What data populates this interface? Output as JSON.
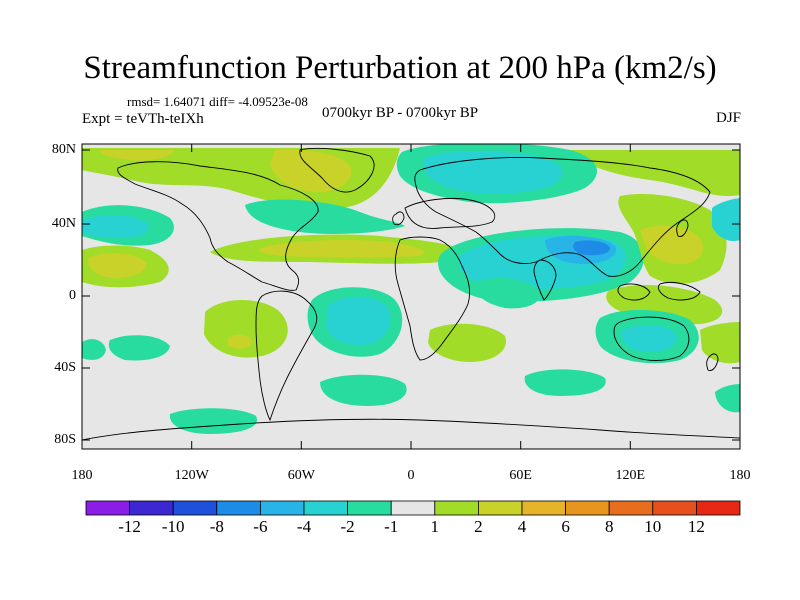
{
  "title": "Streamfunction Perturbation at 200 hPa (km2/s)",
  "stats": "rmsd= 1.64071 diff= -4.09523e-08",
  "experiment": "Expt = teVTh-teIXh",
  "period": "0700kyr BP - 0700kyr BP",
  "season": "DJF",
  "lat_ticks": [
    "80N",
    "40N",
    "0",
    "40S",
    "80S"
  ],
  "lon_ticks": [
    "180",
    "120W",
    "60W",
    "0",
    "60E",
    "120E",
    "180"
  ],
  "colorbar": {
    "labels": [
      "-12",
      "-10",
      "-8",
      "-6",
      "-4",
      "-2",
      "-1",
      "1",
      "2",
      "4",
      "6",
      "8",
      "10",
      "12"
    ],
    "colors": [
      "#8a1ee6",
      "#3c28d2",
      "#1e50dc",
      "#1e8ce6",
      "#28b4e6",
      "#28d2d2",
      "#28dca0",
      "#e6e6e6",
      "#a0dc28",
      "#c8d228",
      "#e6b428",
      "#e6961e",
      "#e66e1e",
      "#e6501e",
      "#e62814"
    ]
  },
  "map": {
    "background": "#e6e6e6",
    "projection": "cylindrical-equidistant",
    "lon_range": [
      -180,
      180
    ],
    "lat_range": [
      -90,
      90
    ]
  }
}
